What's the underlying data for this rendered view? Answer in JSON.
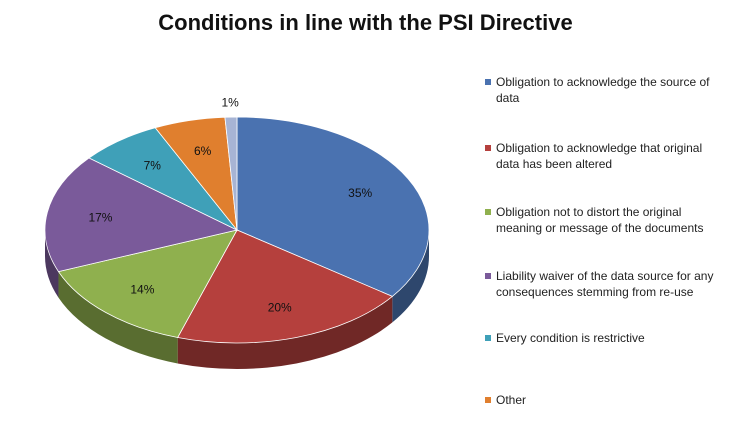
{
  "chart_data": {
    "type": "pie",
    "title": "Conditions in line with the PSI Directive",
    "legend_position": "right",
    "slices": [
      {
        "label": "Obligation to acknowledge the source of data",
        "value": 35,
        "display": "35%",
        "color": "#4a72b0"
      },
      {
        "label": "Obligation to acknowledge that original data has been altered",
        "value": 20,
        "display": "20%",
        "color": "#b5403d"
      },
      {
        "label": "Obligation not to distort the original meaning or message of the documents",
        "value": 14,
        "display": "14%",
        "color": "#8fb04e"
      },
      {
        "label": "Liability waiver of the data source for any consequences stemming from re-use",
        "value": 17,
        "display": "17%",
        "color": "#7a5a9a"
      },
      {
        "label": "Every condition is restrictive",
        "value": 7,
        "display": "7%",
        "color": "#3fa0b8"
      },
      {
        "label": "Other",
        "value": 6,
        "display": "6%",
        "color": "#e07f2e"
      },
      {
        "label": "",
        "value": 1,
        "display": "1%",
        "color": "#a7b4d4"
      }
    ]
  }
}
